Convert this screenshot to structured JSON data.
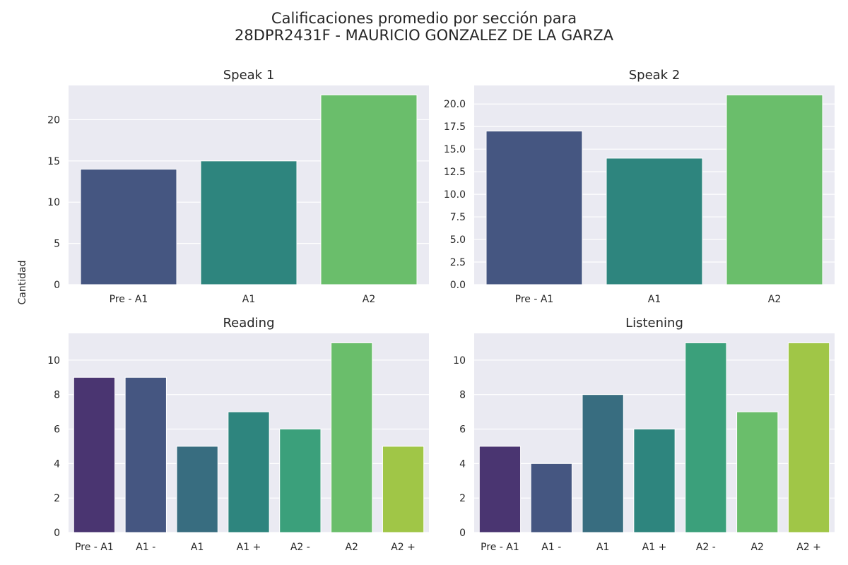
{
  "figure": {
    "title_line1": "Calificaciones promedio por sección para",
    "title_line2": "28DPR2431F - MAURICIO GONZALEZ DE LA GARZA",
    "shared_ylabel": "Cantidad",
    "background_color": "#eaeaf2",
    "grid": true,
    "palette": {
      "three": [
        "#455681",
        "#2e857e",
        "#6abe6b"
      ],
      "seven": [
        "#4a3571",
        "#455681",
        "#386d80",
        "#2e857e",
        "#3ba07b",
        "#6abe6b",
        "#a0c647"
      ]
    }
  },
  "chart_data": [
    {
      "type": "bar",
      "title": "Speak 1",
      "categories": [
        "Pre - A1",
        "A1",
        "A2"
      ],
      "values": [
        14,
        15,
        23
      ],
      "ylim": [
        0,
        24.15
      ],
      "yticks": [
        0,
        5,
        10,
        15,
        20
      ],
      "ytick_labels": [
        "0",
        "5",
        "10",
        "15",
        "20"
      ]
    },
    {
      "type": "bar",
      "title": "Speak 2",
      "categories": [
        "Pre - A1",
        "A1",
        "A2"
      ],
      "values": [
        17,
        14,
        21
      ],
      "ylim": [
        0,
        22.05
      ],
      "yticks": [
        0,
        2.5,
        5,
        7.5,
        10,
        12.5,
        15,
        17.5,
        20
      ],
      "ytick_labels": [
        "0.0",
        "2.5",
        "5.0",
        "7.5",
        "10.0",
        "12.5",
        "15.0",
        "17.5",
        "20.0"
      ]
    },
    {
      "type": "bar",
      "title": "Reading",
      "categories": [
        "Pre - A1",
        "A1 -",
        "A1",
        "A1 +",
        "A2 -",
        "A2",
        "A2 +"
      ],
      "values": [
        9,
        9,
        5,
        7,
        6,
        11,
        5
      ],
      "ylim": [
        0,
        11.55
      ],
      "yticks": [
        0,
        2,
        4,
        6,
        8,
        10
      ],
      "ytick_labels": [
        "0",
        "2",
        "4",
        "6",
        "8",
        "10"
      ]
    },
    {
      "type": "bar",
      "title": "Listening",
      "categories": [
        "Pre - A1",
        "A1 -",
        "A1",
        "A1 +",
        "A2 -",
        "A2",
        "A2 +"
      ],
      "values": [
        5,
        4,
        8,
        6,
        11,
        7,
        11
      ],
      "ylim": [
        0,
        11.55
      ],
      "yticks": [
        0,
        2,
        4,
        6,
        8,
        10
      ],
      "ytick_labels": [
        "0",
        "2",
        "4",
        "6",
        "8",
        "10"
      ]
    }
  ]
}
